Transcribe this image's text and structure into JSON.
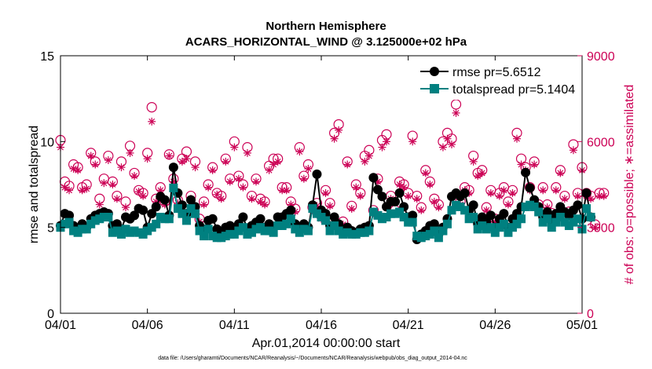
{
  "chart_data": {
    "type": "line",
    "title": "Northern Hemisphere",
    "subtitle": "ACARS_HORIZONTAL_WIND @ 3.125000e+02 hPa",
    "xlabel": "Apr.01,2014 00:00:00 start",
    "ylabel": "rmse and totalspread",
    "y2label": "# of obs: o=possible; ∗=assimilated",
    "footnote": "data file: /Users/gharamti/Documents/NCAR/Reanalysis/~/Documents/NCAR/Reanalysis/webpub/obs_diag_output_2014-04.nc",
    "xlim": [
      1,
      31
    ],
    "ylim": [
      0,
      15
    ],
    "y2lim": [
      0,
      9000
    ],
    "xticks": [
      {
        "value": 1,
        "label": "04/01"
      },
      {
        "value": 6,
        "label": "04/06"
      },
      {
        "value": 11,
        "label": "04/11"
      },
      {
        "value": 16,
        "label": "04/16"
      },
      {
        "value": 21,
        "label": "04/21"
      },
      {
        "value": 26,
        "label": "04/26"
      },
      {
        "value": 31,
        "label": "05/01"
      }
    ],
    "yticks": [
      {
        "value": 0,
        "label": "0"
      },
      {
        "value": 5,
        "label": "5"
      },
      {
        "value": 10,
        "label": "10"
      },
      {
        "value": 15,
        "label": "15"
      }
    ],
    "y2ticks": [
      {
        "value": 0,
        "label": "0"
      },
      {
        "value": 3000,
        "label": "3000"
      },
      {
        "value": 6000,
        "label": "6000"
      },
      {
        "value": 9000,
        "label": "9000"
      }
    ],
    "x_start": 1,
    "x_step": 0.25,
    "series": [
      {
        "name": "rmse pr=5.6512",
        "axis": "left",
        "values": [
          5.1,
          5.8,
          5.7,
          5.1,
          4.9,
          5.2,
          5.0,
          5.5,
          5.7,
          5.8,
          5.9,
          5.8,
          5.1,
          5.2,
          4.9,
          5.6,
          5.5,
          5.7,
          6.1,
          6.0,
          5.0,
          5.8,
          6.2,
          6.8,
          6.6,
          5.7,
          8.5,
          7.0,
          6.3,
          5.8,
          6.6,
          6.2,
          5.1,
          4.9,
          5.4,
          5.5,
          4.9,
          4.6,
          5.0,
          5.1,
          4.8,
          5.2,
          5.6,
          4.9,
          5.1,
          5.3,
          5.5,
          5.0,
          5.2,
          5.0,
          5.6,
          5.6,
          5.8,
          6.0,
          5.2,
          5.0,
          5.2,
          5.0,
          6.3,
          8.1,
          6.0,
          5.8,
          5.1,
          5.6,
          5.2,
          4.8,
          5.0,
          4.8,
          4.7,
          4.9,
          5.0,
          5.1,
          7.9,
          7.2,
          6.8,
          6.2,
          6.5,
          6.5,
          7.0,
          6.2,
          5.6,
          5.7,
          4.3,
          4.6,
          4.8,
          5.1,
          5.2,
          4.6,
          5.0,
          5.5,
          6.8,
          7.0,
          6.8,
          7.0,
          6.0,
          6.3,
          5.2,
          5.6,
          5.3,
          5.7,
          5.0,
          5.5,
          5.8,
          5.0,
          5.5,
          5.8,
          6.2,
          8.2,
          7.3,
          6.6,
          6.2,
          5.6,
          5.9,
          5.4,
          5.8,
          6.2,
          5.9,
          5.7,
          6.0,
          6.3,
          5.5,
          7.0,
          5.6
        ],
        "color": "#000000"
      },
      {
        "name": "totalspread pr=5.1404",
        "axis": "left",
        "values": [
          5.0,
          5.2,
          5.3,
          4.8,
          4.7,
          4.9,
          4.9,
          5.2,
          5.4,
          5.5,
          5.6,
          5.6,
          4.7,
          4.8,
          4.6,
          4.9,
          4.7,
          4.8,
          4.7,
          4.6,
          4.8,
          5.0,
          5.2,
          5.6,
          5.5,
          5.5,
          7.3,
          6.1,
          5.8,
          5.4,
          6.1,
          5.8,
          4.8,
          4.5,
          4.9,
          4.5,
          4.4,
          4.4,
          4.5,
          4.6,
          4.6,
          4.8,
          5.0,
          4.6,
          4.7,
          4.9,
          5.0,
          4.8,
          4.8,
          4.7,
          5.1,
          5.1,
          5.2,
          5.5,
          4.9,
          4.7,
          4.9,
          4.8,
          6.1,
          5.8,
          5.6,
          5.4,
          4.8,
          5.1,
          4.8,
          4.6,
          4.7,
          4.6,
          4.6,
          4.7,
          4.7,
          4.8,
          5.9,
          5.7,
          5.5,
          5.6,
          5.8,
          5.8,
          5.9,
          5.6,
          5.3,
          5.3,
          4.5,
          4.4,
          4.5,
          4.6,
          4.8,
          4.4,
          4.8,
          5.2,
          6.0,
          6.3,
          6.2,
          6.0,
          5.5,
          5.6,
          4.9,
          5.1,
          4.9,
          5.0,
          4.7,
          5.0,
          5.2,
          4.7,
          5.0,
          5.2,
          5.5,
          6.2,
          6.3,
          6.2,
          5.9,
          5.3,
          5.5,
          5.0,
          5.3,
          5.6,
          5.3,
          5.1,
          5.3,
          5.5,
          4.9,
          6.1,
          5.6
        ],
        "color": "#008080"
      },
      {
        "name": "obs possible",
        "axis": "right",
        "values": [
          6050,
          4600,
          4450,
          5200,
          5100,
          4400,
          4500,
          5600,
          5300,
          4000,
          4700,
          5500,
          4600,
          4100,
          5300,
          3900,
          5850,
          4900,
          4300,
          4200,
          5600,
          7200,
          4000,
          4400,
          3900,
          5550,
          4700,
          3950,
          5400,
          5650,
          4100,
          5300,
          3300,
          3900,
          4500,
          5100,
          4200,
          4100,
          5400,
          4700,
          6000,
          4800,
          4500,
          5800,
          4100,
          4700,
          4000,
          3900,
          5150,
          5400,
          5400,
          4400,
          4400,
          3900,
          3650,
          5800,
          4800,
          5200,
          3700,
          3850,
          3400,
          4300,
          3850,
          6300,
          6600,
          3200,
          5300,
          3750,
          4500,
          4200,
          5500,
          5700,
          3600,
          4700,
          6050,
          6250,
          4100,
          3600,
          4600,
          4500,
          4200,
          6200,
          4100,
          3700,
          5000,
          4600,
          4000,
          3800,
          6000,
          6300,
          6100,
          7300,
          3900,
          4400,
          4300,
          5500,
          4900,
          5000,
          3700,
          4300,
          3300,
          4200,
          4400,
          3900,
          4300,
          6300,
          5400,
          5100,
          4400,
          5300,
          3800,
          4400,
          3800,
          3500,
          4400,
          5000,
          4100,
          3550,
          5900,
          4200,
          5100,
          4200,
          4100,
          3100,
          4200,
          4200
        ],
        "color": "#CC0055"
      },
      {
        "name": "obs assimilated",
        "axis": "right",
        "values": [
          5800,
          4400,
          4300,
          5050,
          5000,
          4300,
          4350,
          5500,
          5200,
          3800,
          4550,
          5350,
          4500,
          4000,
          5100,
          3700,
          5600,
          4800,
          4250,
          4100,
          5400,
          6700,
          3900,
          4300,
          3800,
          5500,
          4600,
          3850,
          5300,
          5400,
          4000,
          5100,
          3200,
          3800,
          4400,
          5000,
          4150,
          4000,
          5300,
          4600,
          5800,
          4700,
          4400,
          5600,
          4000,
          4600,
          3900,
          3800,
          5000,
          5200,
          5300,
          4300,
          4300,
          3800,
          3550,
          5650,
          4700,
          5050,
          3600,
          3750,
          3300,
          4200,
          3750,
          6100,
          6400,
          3100,
          5200,
          3650,
          4400,
          4100,
          5300,
          5500,
          3500,
          4600,
          5800,
          6000,
          4000,
          3500,
          4500,
          4400,
          4100,
          6000,
          4000,
          3600,
          4900,
          4500,
          3900,
          3700,
          5800,
          6100,
          5900,
          7000,
          3800,
          4300,
          4200,
          5300,
          4800,
          4900,
          3600,
          4200,
          3200,
          4100,
          4300,
          3800,
          4200,
          6100,
          5200,
          5000,
          4300,
          5200,
          3700,
          4300,
          3700,
          3400,
          4300,
          4900,
          4000,
          3450,
          5700,
          4100,
          5000,
          4100,
          4000,
          3000,
          4100,
          4100
        ],
        "color": "#CC0055"
      }
    ],
    "legend": [
      {
        "label": "rmse pr=5.6512",
        "color": "#000000",
        "marker": "circle"
      },
      {
        "label": "totalspread pr=5.1404",
        "color": "#008080",
        "marker": "square"
      }
    ],
    "legend_position": "top-right",
    "colors": {
      "left_axis": "#000000",
      "right_axis": "#CC0055",
      "rmse": "#000000",
      "spread": "#008080",
      "obs": "#CC0055"
    }
  }
}
